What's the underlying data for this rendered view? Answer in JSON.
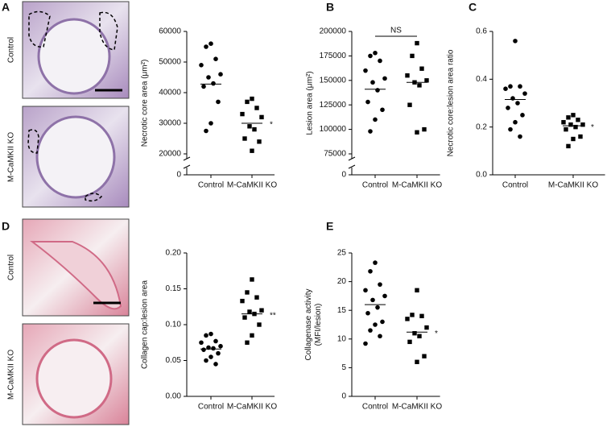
{
  "panel_labels": [
    "A",
    "B",
    "C",
    "D",
    "E"
  ],
  "images": [
    {
      "label": "Control"
    },
    {
      "label": "M-CaMKII KO"
    },
    {
      "label": "Control"
    },
    {
      "label": "M-CaMKII KO"
    }
  ],
  "chart_data": [
    {
      "type": "strip",
      "y_label": "Necrotic core area (μm²)",
      "categories": [
        "Control",
        "M-CaMKII KO"
      ],
      "axis_break": true,
      "ylim": [
        20000,
        60000
      ],
      "yticks": [
        0,
        20000,
        30000,
        40000,
        50000,
        60000
      ],
      "groups": [
        {
          "marker": "circle",
          "values": [
            56000,
            55000,
            51000,
            49000,
            46000,
            45000,
            43000,
            42000,
            37000,
            30000,
            27500
          ],
          "mean": 42800
        },
        {
          "marker": "square",
          "values": [
            38000,
            37000,
            35000,
            33000,
            32000,
            29000,
            28000,
            25000,
            24000,
            21000
          ],
          "mean": 30000,
          "significance": "*"
        }
      ]
    },
    {
      "type": "strip",
      "y_label": "Lesion area (μm²)",
      "categories": [
        "Control",
        "M-CaMKII KO"
      ],
      "axis_break": true,
      "annotation": "NS",
      "ylim": [
        75000,
        200000
      ],
      "yticks": [
        0,
        75000,
        100000,
        125000,
        150000,
        175000,
        200000
      ],
      "groups": [
        {
          "marker": "circle",
          "values": [
            178000,
            175000,
            170000,
            160000,
            152000,
            148000,
            140000,
            128000,
            120000,
            110000,
            98000
          ],
          "mean": 141000
        },
        {
          "marker": "square",
          "values": [
            188000,
            175000,
            162000,
            155000,
            150000,
            148000,
            145000,
            125000,
            100000,
            97000
          ],
          "mean": 148000
        }
      ]
    },
    {
      "type": "strip",
      "y_label": "Necrotic core:lesion area ratio",
      "categories": [
        "Control",
        "M-CaMKII KO"
      ],
      "axis_break": false,
      "ylim": [
        0,
        0.6
      ],
      "yticks": [
        {
          "value": 0,
          "label": "0.0"
        },
        0.2,
        0.4,
        0.6
      ],
      "groups": [
        {
          "marker": "circle",
          "values": [
            0.56,
            0.37,
            0.37,
            0.36,
            0.34,
            0.32,
            0.3,
            0.28,
            0.25,
            0.22,
            0.19,
            0.16
          ],
          "mean": 0.315
        },
        {
          "marker": "square",
          "values": [
            0.25,
            0.24,
            0.23,
            0.22,
            0.21,
            0.21,
            0.2,
            0.19,
            0.16,
            0.15,
            0.12
          ],
          "mean": 0.205,
          "significance": "*"
        }
      ]
    },
    {
      "type": "strip",
      "y_label": "Collagen cap:lesion area",
      "categories": [
        "Control",
        "M-CaMKII KO"
      ],
      "axis_break": false,
      "ylim": [
        0,
        0.2
      ],
      "yticks": [
        {
          "value": 0,
          "label": "0.00"
        },
        {
          "value": 0.05,
          "label": "0.05"
        },
        {
          "value": 0.1,
          "label": "0.10"
        },
        {
          "value": 0.15,
          "label": "0.15"
        },
        {
          "value": 0.2,
          "label": "0.20"
        }
      ],
      "groups": [
        {
          "marker": "circle",
          "values": [
            0.087,
            0.085,
            0.077,
            0.075,
            0.07,
            0.068,
            0.067,
            0.065,
            0.06,
            0.055,
            0.05,
            0.045
          ],
          "mean": 0.066
        },
        {
          "marker": "square",
          "values": [
            0.163,
            0.145,
            0.138,
            0.133,
            0.12,
            0.118,
            0.115,
            0.11,
            0.1,
            0.085,
            0.075
          ],
          "mean": 0.115,
          "significance": "**"
        }
      ]
    },
    {
      "type": "strip",
      "y_label": "Collagenase activity\n(MFI/lesion)",
      "categories": [
        "Control",
        "M-CaMKII KO"
      ],
      "axis_break": false,
      "ylim": [
        0,
        25
      ],
      "yticks": [
        0,
        5,
        10,
        15,
        20,
        25
      ],
      "groups": [
        {
          "marker": "circle",
          "values": [
            23.3,
            21.8,
            19.5,
            18.5,
            17.5,
            16.8,
            15.5,
            14.5,
            13,
            12.5,
            11.5,
            10.5,
            9.2
          ],
          "mean": 16
        },
        {
          "marker": "square",
          "values": [
            18.5,
            14.2,
            14,
            13.5,
            12,
            11,
            10.5,
            9.5,
            7,
            6
          ],
          "mean": 11.2,
          "significance": "*"
        }
      ]
    }
  ]
}
